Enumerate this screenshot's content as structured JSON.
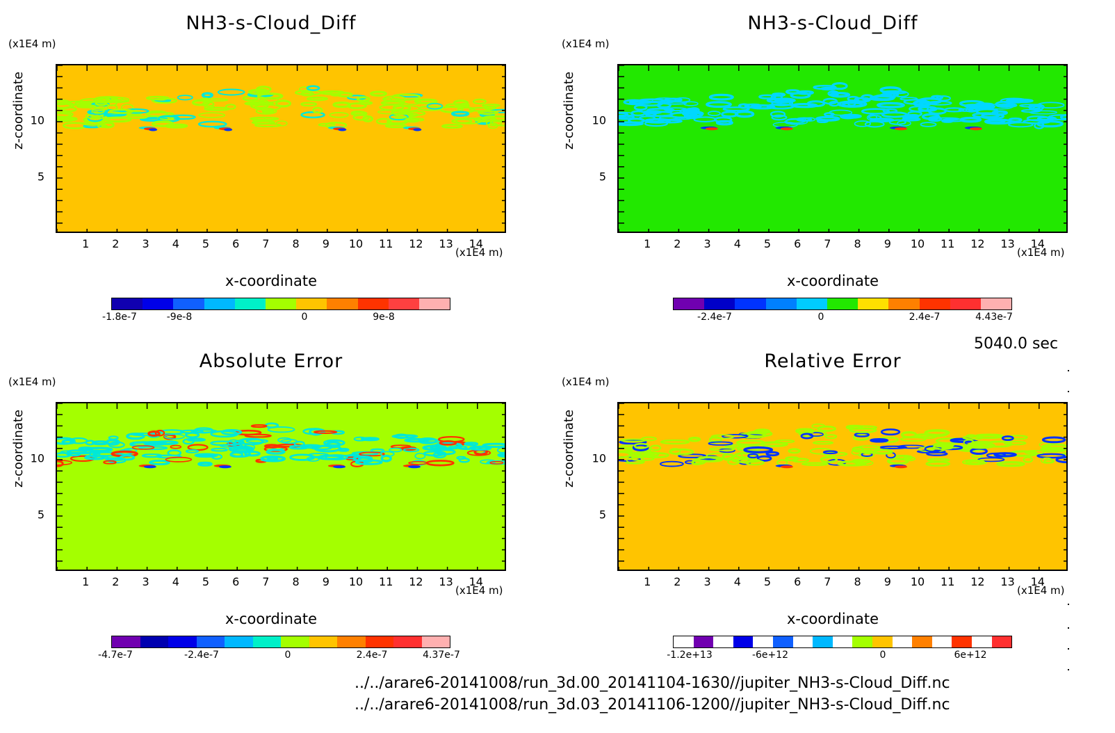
{
  "chart_data": [
    {
      "type": "heatmap",
      "title": "NH3-s-Cloud_Diff",
      "xlabel": "x-coordinate",
      "ylabel": "z-coordinate",
      "x_unit": "(x1E4 m)",
      "y_unit": "(x1E4 m)",
      "xticks": [
        "1",
        "2",
        "3",
        "4",
        "5",
        "6",
        "7",
        "8",
        "9",
        "10",
        "11",
        "12",
        "13",
        "14"
      ],
      "yticks": [
        "5",
        "10"
      ],
      "xlim": [
        0,
        15
      ],
      "ylim": [
        0,
        15
      ],
      "background_color": "#ffc400",
      "feature_colors": [
        "#a4ff00",
        "#00e8d8",
        "#ff3300",
        "#0033ff"
      ],
      "colorbar": {
        "colors": [
          "#1000b0",
          "#0000e8",
          "#1060ff",
          "#00b8ff",
          "#00f0c8",
          "#a4ff00",
          "#ffc400",
          "#ff8000",
          "#ff3300",
          "#ff4040",
          "#ffb0b0"
        ],
        "labels": [
          "-1.8e-7",
          "-9e-8",
          "0",
          "9e-8"
        ]
      }
    },
    {
      "type": "heatmap",
      "title": "NH3-s-Cloud_Diff",
      "xlabel": "x-coordinate",
      "ylabel": "z-coordinate",
      "x_unit": "(x1E4 m)",
      "y_unit": "(x1E4 m)",
      "xticks": [
        "1",
        "2",
        "3",
        "4",
        "5",
        "6",
        "7",
        "8",
        "9",
        "10",
        "11",
        "12",
        "13",
        "14"
      ],
      "yticks": [
        "5",
        "10"
      ],
      "xlim": [
        0,
        15
      ],
      "ylim": [
        0,
        15
      ],
      "background_color": "#22e800",
      "feature_colors": [
        "#00d8ff",
        "#0033ff",
        "#ff3300"
      ],
      "colorbar": {
        "colors": [
          "#7000b0",
          "#0000c8",
          "#0033ff",
          "#0080ff",
          "#00ccff",
          "#22e800",
          "#ffe000",
          "#ff8000",
          "#ff3300",
          "#ff3030",
          "#ffb0b0"
        ],
        "labels": [
          "-2.4e-7",
          "0",
          "2.4e-7",
          "4.43e-7"
        ]
      }
    },
    {
      "type": "heatmap",
      "title": "Absolute Error",
      "xlabel": "x-coordinate",
      "ylabel": "z-coordinate",
      "x_unit": "(x1E4 m)",
      "y_unit": "(x1E4 m)",
      "xticks": [
        "1",
        "2",
        "3",
        "4",
        "5",
        "6",
        "7",
        "8",
        "9",
        "10",
        "11",
        "12",
        "13",
        "14"
      ],
      "yticks": [
        "5",
        "10"
      ],
      "xlim": [
        0,
        15
      ],
      "ylim": [
        0,
        15
      ],
      "background_color": "#a4ff00",
      "feature_colors": [
        "#00e8d8",
        "#ff3300",
        "#0033ff"
      ],
      "colorbar": {
        "colors": [
          "#7000b0",
          "#0000b0",
          "#0000e8",
          "#1060ff",
          "#00b8ff",
          "#00f0c8",
          "#a4ff00",
          "#ffc400",
          "#ff8000",
          "#ff3300",
          "#ff3030",
          "#ffb0b0"
        ],
        "labels": [
          "-4.7e-7",
          "-2.4e-7",
          "0",
          "2.4e-7",
          "4.37e-7"
        ]
      }
    },
    {
      "type": "heatmap",
      "title": "Relative Error",
      "xlabel": "x-coordinate",
      "ylabel": "z-coordinate",
      "x_unit": "(x1E4 m)",
      "y_unit": "(x1E4 m)",
      "xticks": [
        "1",
        "2",
        "3",
        "4",
        "5",
        "6",
        "7",
        "8",
        "9",
        "10",
        "11",
        "12",
        "13",
        "14"
      ],
      "yticks": [
        "5",
        "10"
      ],
      "xlim": [
        0,
        15
      ],
      "ylim": [
        0,
        15
      ],
      "background_color": "#ffc400",
      "feature_colors": [
        "#a4ff00",
        "#0033ff",
        "#ff3300"
      ],
      "colorbar": {
        "colors": [
          "#ffffff",
          "#7000b0",
          "#ffffff",
          "#0000e8",
          "#ffffff",
          "#1060ff",
          "#ffffff",
          "#00b8ff",
          "#ffffff",
          "#a4ff00",
          "#ffc400",
          "#ffffff",
          "#ff8000",
          "#ffffff",
          "#ff3300",
          "#ffffff",
          "#ff3030"
        ],
        "labels": [
          "-1.2e+13",
          "-6e+12",
          "0",
          "6e+12"
        ]
      }
    }
  ],
  "footer": {
    "time": "5040.0 sec",
    "path1": "../../arare6-20141008/run_3d.00_20141104-1630//jupiter_NH3-s-Cloud_Diff.nc",
    "path2": "../../arare6-20141008/run_3d.03_20141106-1200//jupiter_NH3-s-Cloud_Diff.nc"
  }
}
